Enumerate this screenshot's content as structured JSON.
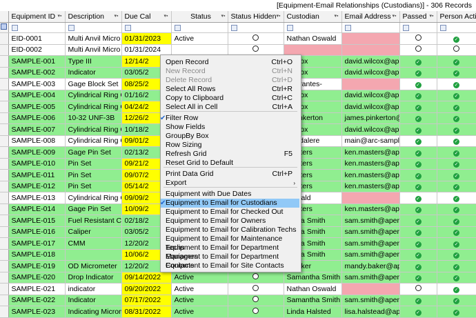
{
  "window": {
    "title": "[Equipment-Email Relationships (Custodians)] - 306 Records"
  },
  "columns": [
    "Equipment ID",
    "Description",
    "Due Cal",
    "Status",
    "Status Hidden",
    "Custodian",
    "Email Address",
    "Passed",
    "Person Active"
  ],
  "rows": [
    {
      "id": "EID-0001",
      "desc": "Multi Anvil Micro",
      "due": "01/31/2023",
      "status": "Active",
      "hidden": "circle",
      "cust": "Nathan Oswald",
      "email": "",
      "passed": "circle",
      "active": "check",
      "row": "white",
      "due_color": "yellow",
      "cust_color": "white",
      "email_color": "pink"
    },
    {
      "id": "EID-0002",
      "desc": "Multi Anvil Micro",
      "due": "01/31/2024",
      "status": "",
      "hidden": "circle",
      "cust": "",
      "email": "",
      "passed": "circle",
      "active": "circle",
      "row": "white",
      "due_color": "white",
      "cust_color": "pink",
      "email_color": "pink"
    },
    {
      "id": "SAMPLE-001",
      "desc": "Type III",
      "due": "12/14/2",
      "status": "",
      "hidden": "",
      "cust": "Wilcox",
      "email": "david.wilcox@ape",
      "passed": "check",
      "active": "check",
      "row": "green",
      "due_color": "yellow",
      "cust_color": "green",
      "email_color": "green"
    },
    {
      "id": "SAMPLE-002",
      "desc": "Indicator",
      "due": "03/05/2",
      "status": "",
      "hidden": "",
      "cust": "Wilcox",
      "email": "david.wilcox@ape",
      "passed": "check",
      "active": "check",
      "row": "green",
      "due_color": "green",
      "cust_color": "green",
      "email_color": "green"
    },
    {
      "id": "SAMPLE-003",
      "desc": "Gage Block Set",
      "due": "08/25/2",
      "status": "",
      "hidden": "",
      "cust": "Cervantes-",
      "email": "",
      "passed": "check",
      "active": "check",
      "row": "white",
      "due_color": "yellow",
      "cust_color": "white",
      "email_color": "pink"
    },
    {
      "id": "SAMPLE-004",
      "desc": "Cylindrical Ring G",
      "due": "01/16/2",
      "status": "",
      "hidden": "",
      "cust": "Wilcox",
      "email": "david.wilcox@ape",
      "passed": "check",
      "active": "check",
      "row": "green",
      "due_color": "green",
      "cust_color": "green",
      "email_color": "green"
    },
    {
      "id": "SAMPLE-005",
      "desc": "Cylindrical Ring G",
      "due": "04/24/2",
      "status": "",
      "hidden": "",
      "cust": "Wilcox",
      "email": "david.wilcox@ape",
      "passed": "check",
      "active": "check",
      "row": "green",
      "due_color": "yellow",
      "cust_color": "green",
      "email_color": "green"
    },
    {
      "id": "SAMPLE-006",
      "desc": "10-32 UNF-3B",
      "due": "12/26/2",
      "status": "",
      "hidden": "",
      "cust": "s Pinkerton",
      "email": "james.pinkerton@",
      "passed": "check",
      "active": "check",
      "row": "green",
      "due_color": "yellow",
      "cust_color": "green",
      "email_color": "green"
    },
    {
      "id": "SAMPLE-007",
      "desc": "Cylindrical Ring G",
      "due": "10/18/2",
      "status": "",
      "hidden": "",
      "cust": "Wilcox",
      "email": "david.wilcox@ape",
      "passed": "check",
      "active": "check",
      "row": "green",
      "due_color": "green",
      "cust_color": "green",
      "email_color": "green"
    },
    {
      "id": "SAMPLE-008",
      "desc": "Cylindrical Ring G",
      "due": "09/01/2",
      "status": "",
      "hidden": "",
      "cust": "Bandalere",
      "email": "main@arc-sample",
      "passed": "check",
      "active": "check",
      "row": "white",
      "due_color": "yellow",
      "cust_color": "white",
      "email_color": "white"
    },
    {
      "id": "SAMPLE-009",
      "desc": "Gage Pin Set",
      "due": "02/13/2",
      "status": "",
      "hidden": "",
      "cust": "Masters",
      "email": "ken.masters@ape",
      "passed": "check",
      "active": "check",
      "row": "green",
      "due_color": "green",
      "cust_color": "green",
      "email_color": "green"
    },
    {
      "id": "SAMPLE-010",
      "desc": "Pin Set",
      "due": "09/21/2",
      "status": "",
      "hidden": "",
      "cust": "Masters",
      "email": "ken.masters@ape",
      "passed": "check",
      "active": "check",
      "row": "green",
      "due_color": "yellow",
      "cust_color": "green",
      "email_color": "green"
    },
    {
      "id": "SAMPLE-011",
      "desc": "Pin Set",
      "due": "09/07/2",
      "status": "",
      "hidden": "",
      "cust": "Masters",
      "email": "ken.masters@ape",
      "passed": "check",
      "active": "check",
      "row": "green",
      "due_color": "yellow",
      "cust_color": "green",
      "email_color": "green"
    },
    {
      "id": "SAMPLE-012",
      "desc": "Pin Set",
      "due": "05/14/2",
      "status": "",
      "hidden": "",
      "cust": "Masters",
      "email": "ken.masters@ape",
      "passed": "check",
      "active": "check",
      "row": "green",
      "due_color": "yellow",
      "cust_color": "green",
      "email_color": "green"
    },
    {
      "id": "SAMPLE-013",
      "desc": "Cylindrical Ring G",
      "due": "09/09/2",
      "status": "",
      "hidden": "",
      "cust": "Oswald",
      "email": "",
      "passed": "check",
      "active": "check",
      "row": "white",
      "due_color": "yellow",
      "cust_color": "white",
      "email_color": "pink"
    },
    {
      "id": "SAMPLE-014",
      "desc": "Gage Pin Set",
      "due": "10/09/2",
      "status": "",
      "hidden": "",
      "cust": "Masters",
      "email": "ken.masters@ape",
      "passed": "check",
      "active": "check",
      "row": "green",
      "due_color": "yellow",
      "cust_color": "green",
      "email_color": "green"
    },
    {
      "id": "SAMPLE-015",
      "desc": "Fuel Resistant Co",
      "due": "02/18/2",
      "status": "",
      "hidden": "",
      "cust": "antha Smith",
      "email": "sam.smith@apen",
      "passed": "check",
      "active": "check",
      "row": "green",
      "due_color": "green",
      "cust_color": "green",
      "email_color": "green"
    },
    {
      "id": "SAMPLE-016",
      "desc": "Caliper",
      "due": "03/05/2",
      "status": "",
      "hidden": "",
      "cust": "antha Smith",
      "email": "sam.smith@apen",
      "passed": "check",
      "active": "check",
      "row": "green",
      "due_color": "green",
      "cust_color": "green",
      "email_color": "green"
    },
    {
      "id": "SAMPLE-017",
      "desc": "CMM",
      "due": "12/20/2",
      "status": "",
      "hidden": "",
      "cust": "antha Smith",
      "email": "sam.smith@apen",
      "passed": "check",
      "active": "check",
      "row": "green",
      "due_color": "green",
      "cust_color": "green",
      "email_color": "green"
    },
    {
      "id": "SAMPLE-018",
      "desc": "",
      "due": "10/06/2",
      "status": "",
      "hidden": "",
      "cust": "antha Smith",
      "email": "sam.smith@apen",
      "passed": "check",
      "active": "check",
      "row": "green",
      "due_color": "yellow",
      "cust_color": "green",
      "email_color": "green"
    },
    {
      "id": "SAMPLE-019",
      "desc": "OD Micrometer",
      "due": "12/20/2",
      "status": "",
      "hidden": "",
      "cust": "y Baker",
      "email": "mandy.baker@ap",
      "passed": "check",
      "active": "check",
      "row": "green",
      "due_color": "green",
      "cust_color": "green",
      "email_color": "green"
    },
    {
      "id": "SAMPLE-020",
      "desc": "Drop Indicator",
      "due": "09/14/2022",
      "status": "Active",
      "hidden": "circle",
      "cust": "Samantha Smith",
      "email": "sam.smith@apen",
      "passed": "check",
      "active": "check",
      "row": "green",
      "due_color": "yellow",
      "cust_color": "green",
      "email_color": "green"
    },
    {
      "id": "SAMPLE-021",
      "desc": "indicator",
      "due": "09/20/2022",
      "status": "Active",
      "hidden": "circle",
      "cust": "Nathan Oswald",
      "email": "",
      "passed": "circle",
      "active": "check",
      "row": "white",
      "due_color": "yellow",
      "cust_color": "white",
      "email_color": "pink"
    },
    {
      "id": "SAMPLE-022",
      "desc": "Indicator",
      "due": "07/17/2022",
      "status": "Active",
      "hidden": "circle",
      "cust": "Samantha Smith",
      "email": "sam.smith@apen",
      "passed": "check",
      "active": "check",
      "row": "green",
      "due_color": "yellow",
      "cust_color": "green",
      "email_color": "green"
    },
    {
      "id": "SAMPLE-023",
      "desc": "Indicating Microm",
      "due": "08/31/2022",
      "status": "Active",
      "hidden": "circle",
      "cust": "Linda Halsted",
      "email": "lisa.halstead@ape",
      "passed": "check",
      "active": "check",
      "row": "green",
      "due_color": "yellow",
      "cust_color": "green",
      "email_color": "green"
    }
  ],
  "context_menu": {
    "items": [
      {
        "label": "Open Record",
        "shortcut": "Ctrl+O",
        "disabled": false
      },
      {
        "label": "New Record",
        "shortcut": "Ctrl+N",
        "disabled": true
      },
      {
        "label": "Delete Record",
        "shortcut": "Ctrl+D",
        "disabled": true
      },
      {
        "label": "Select All Rows",
        "shortcut": "Ctrl+R",
        "disabled": false
      },
      {
        "label": "Copy to Clipboard",
        "shortcut": "Ctrl+C",
        "disabled": false
      },
      {
        "label": "Select All in Cell",
        "shortcut": "Ctrl+A",
        "disabled": false
      },
      {
        "label": "Filter Row",
        "shortcut": "",
        "checked": true
      },
      {
        "label": "Show Fields",
        "shortcut": ""
      },
      {
        "label": "GroupBy Box",
        "shortcut": ""
      },
      {
        "label": "Row Sizing",
        "shortcut": ""
      },
      {
        "label": "Refresh Grid",
        "shortcut": "F5"
      },
      {
        "label": "Reset Grid to Default",
        "shortcut": ""
      },
      {
        "label": "Print Data Grid",
        "shortcut": "Ctrl+P"
      },
      {
        "label": "Export",
        "shortcut": "",
        "submenu": true
      },
      {
        "label": "Equipment with Due Dates",
        "shortcut": ""
      },
      {
        "label": "Equipment to Email for Custodians",
        "shortcut": "",
        "checked": true,
        "highlighted": true
      },
      {
        "label": "Equipment to Email for Checked Out",
        "shortcut": ""
      },
      {
        "label": "Equipment to Email for Owners",
        "shortcut": ""
      },
      {
        "label": "Equipment to Email for Calibration Techs",
        "shortcut": ""
      },
      {
        "label": "Equipment to Email for Maintenance Techs",
        "shortcut": ""
      },
      {
        "label": "Equipment to Email for Department Managers",
        "shortcut": ""
      },
      {
        "label": "Equipment to Email for Department Contacts",
        "shortcut": ""
      },
      {
        "label": "Equipment to Email for Site Contacts",
        "shortcut": ""
      }
    ]
  },
  "colors": {
    "green": "#90ee90",
    "yellow": "#ffff00",
    "pink": "#f4a7b0",
    "highlight": "#91c9f7"
  }
}
